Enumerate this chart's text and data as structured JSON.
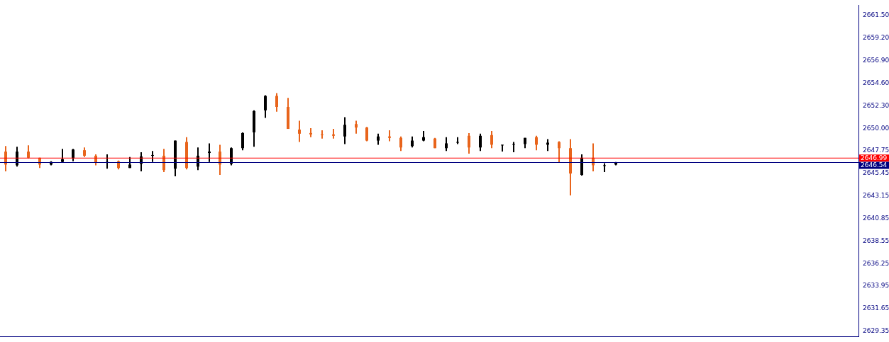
{
  "chart_data": {
    "type": "candlestick",
    "categories": [
      null,
      null,
      null,
      null,
      null,
      null,
      null,
      null,
      null,
      null,
      null,
      null,
      null,
      null,
      null,
      null,
      null,
      null,
      null,
      null,
      null,
      null,
      null,
      null,
      null,
      null,
      null,
      null,
      null,
      null,
      null,
      null,
      null,
      null,
      null,
      null,
      null,
      null,
      null,
      null,
      null,
      null,
      null,
      null,
      null,
      null,
      null,
      null,
      null,
      null,
      null,
      null,
      null,
      null,
      null,
      null,
      null,
      null,
      null,
      null,
      null,
      null,
      null,
      null,
      null,
      null,
      null,
      null,
      null,
      null,
      null,
      null,
      null,
      null,
      null,
      null
    ],
    "ohlc": [
      [
        2647.65,
        2648.21,
        2645.63,
        2646.33
      ],
      [
        2646.26,
        2648.14,
        2646.12,
        2647.65
      ],
      [
        2647.65,
        2648.28,
        2646.95,
        2647.02
      ],
      [
        2647.02,
        2647.02,
        2645.98,
        2646.33
      ],
      [
        2646.33,
        2646.67,
        2646.26,
        2646.6
      ],
      [
        2646.6,
        2647.93,
        2646.53,
        2646.88
      ],
      [
        2646.95,
        2647.93,
        2646.67,
        2647.86
      ],
      [
        2647.79,
        2648.07,
        2647.09,
        2647.23
      ],
      [
        2647.23,
        2647.37,
        2646.26,
        2646.53
      ],
      [
        2646.6,
        2647.37,
        2645.91,
        2646.6
      ],
      [
        2646.67,
        2646.74,
        2645.84,
        2645.98
      ],
      [
        2645.98,
        2647.09,
        2645.98,
        2646.33
      ],
      [
        2646.4,
        2647.58,
        2645.63,
        2647.16
      ],
      [
        2647.23,
        2647.72,
        2646.6,
        2647.3
      ],
      [
        2647.23,
        2647.93,
        2645.56,
        2645.77
      ],
      [
        2645.91,
        2648.77,
        2645.14,
        2648.77
      ],
      [
        2648.63,
        2649.12,
        2645.84,
        2645.98
      ],
      [
        2646.12,
        2648.07,
        2645.77,
        2647.23
      ],
      [
        2647.51,
        2648.49,
        2646.6,
        2647.65
      ],
      [
        2647.65,
        2648.35,
        2645.28,
        2646.33
      ],
      [
        2646.4,
        2648.07,
        2646.26,
        2648.0
      ],
      [
        2648.0,
        2649.61,
        2647.79,
        2649.54
      ],
      [
        2649.61,
        2651.85,
        2648.14,
        2651.78
      ],
      [
        2651.85,
        2653.39,
        2651.08,
        2653.32
      ],
      [
        2653.32,
        2653.6,
        2651.71,
        2652.2
      ],
      [
        2652.2,
        2653.11,
        2649.96,
        2649.96
      ],
      [
        2649.89,
        2650.8,
        2648.63,
        2649.47
      ],
      [
        2649.54,
        2650.03,
        2649.12,
        2649.4
      ],
      [
        2649.4,
        2649.82,
        2648.98,
        2649.33
      ],
      [
        2649.4,
        2649.96,
        2648.98,
        2649.26
      ],
      [
        2649.19,
        2651.15,
        2648.42,
        2650.38
      ],
      [
        2650.45,
        2650.8,
        2649.47,
        2650.1
      ],
      [
        2650.1,
        2650.17,
        2648.7,
        2648.77
      ],
      [
        2648.77,
        2649.47,
        2648.35,
        2649.19
      ],
      [
        2649.19,
        2649.82,
        2648.7,
        2649.05
      ],
      [
        2649.05,
        2649.19,
        2647.72,
        2648.07
      ],
      [
        2648.21,
        2649.19,
        2648.07,
        2648.77
      ],
      [
        2648.77,
        2649.75,
        2648.7,
        2649.12
      ],
      [
        2648.98,
        2649.05,
        2648.0,
        2648.0
      ],
      [
        2648.0,
        2649.12,
        2647.72,
        2648.49
      ],
      [
        2648.56,
        2649.12,
        2648.42,
        2648.63
      ],
      [
        2649.26,
        2649.54,
        2647.44,
        2648.07
      ],
      [
        2648.07,
        2649.47,
        2647.72,
        2649.26
      ],
      [
        2649.33,
        2649.75,
        2648.0,
        2648.35
      ],
      [
        2648.28,
        2648.35,
        2647.65,
        2648.35
      ],
      [
        2648.35,
        2648.63,
        2647.58,
        2648.42
      ],
      [
        2648.42,
        2649.05,
        2648.0,
        2649.05
      ],
      [
        2649.12,
        2649.26,
        2647.79,
        2648.35
      ],
      [
        2648.35,
        2648.91,
        2647.72,
        2648.56
      ],
      [
        2648.63,
        2648.7,
        2646.53,
        2648.0
      ],
      [
        2648.0,
        2648.91,
        2643.18,
        2645.42
      ],
      [
        2645.28,
        2647.37,
        2645.21,
        2647.02
      ],
      [
        2647.02,
        2648.49,
        2645.63,
        2646.26
      ],
      [
        2646.19,
        2646.47,
        2645.56,
        2646.26
      ],
      [
        2646.33,
        2646.6,
        2646.26,
        2646.53
      ],
      null,
      null,
      null,
      null,
      null,
      null,
      null,
      null,
      null,
      null,
      null,
      null,
      null,
      null,
      null,
      null,
      null,
      null,
      null,
      null,
      null
    ],
    "colors": [
      "#e8641b",
      "#000000",
      "#e8641b",
      "#e8641b",
      "#000000",
      "#000000",
      "#000000",
      "#e8641b",
      "#e8641b",
      "#000000",
      "#e8641b",
      "#000000",
      "#000000",
      "#000000",
      "#e8641b",
      "#000000",
      "#e8641b",
      "#000000",
      "#000000",
      "#e8641b",
      "#000000",
      "#000000",
      "#000000",
      "#000000",
      "#e8641b",
      "#e8641b",
      "#e8641b",
      "#e8641b",
      "#e8641b",
      "#e8641b",
      "#000000",
      "#e8641b",
      "#e8641b",
      "#000000",
      "#e8641b",
      "#e8641b",
      "#000000",
      "#000000",
      "#e8641b",
      "#000000",
      "#000000",
      "#e8641b",
      "#000000",
      "#e8641b",
      "#000000",
      "#000000",
      "#000000",
      "#e8641b",
      "#000000",
      "#e8641b",
      "#e8641b",
      "#000000",
      "#e8641b",
      "#000000",
      "#000000",
      null,
      null,
      null,
      null,
      null,
      null,
      null,
      null,
      null,
      null,
      null,
      null,
      null,
      null,
      null,
      null,
      null,
      null,
      null,
      null,
      null
    ],
    "ylim": [
      2628.8,
      2662.55
    ],
    "yticks": [
      {
        "value": 2661.5,
        "label": "2661.50"
      },
      {
        "value": 2659.2,
        "label": "2659.20"
      },
      {
        "value": 2656.9,
        "label": "2656.90"
      },
      {
        "value": 2654.6,
        "label": "2654.60"
      },
      {
        "value": 2652.3,
        "label": "2652.30"
      },
      {
        "value": 2650,
        "label": "2650.00"
      },
      {
        "value": 2647.75,
        "label": "2647.75"
      },
      {
        "value": 2645.45,
        "label": "2645.45"
      },
      {
        "value": 2643.15,
        "label": "2643.15"
      },
      {
        "value": 2640.85,
        "label": "2640.85"
      },
      {
        "value": 2638.55,
        "label": "2638.55"
      },
      {
        "value": 2636.25,
        "label": "2636.25"
      },
      {
        "value": 2633.95,
        "label": "2633.95"
      },
      {
        "value": 2631.65,
        "label": "2631.65"
      },
      {
        "value": 2629.35,
        "label": "2629.35"
      }
    ],
    "ref_lines": [
      {
        "axis": "y",
        "value": 2646.99,
        "label": "2646.99",
        "color": "#ff0000"
      },
      {
        "axis": "y",
        "value": 2646.54,
        "label": "2646.54",
        "color": "#000080"
      }
    ],
    "tick_labels": "y",
    "grid": false,
    "legend": false
  }
}
